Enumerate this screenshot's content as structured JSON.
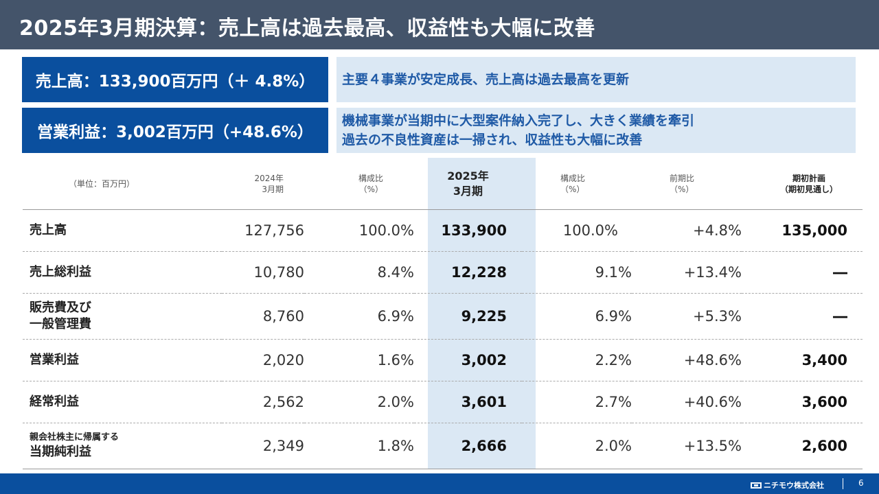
{
  "title": "2025年3月期決算：売上高は過去最高、収益性も大幅に改善",
  "highlights": [
    {
      "metric": "売上高：133,900百万円（＋ 4.8%）",
      "message": [
        "主要４事業が安定成長、売上高は過去最高を更新"
      ]
    },
    {
      "metric": "営業利益：3,002百万円（+48.6%）",
      "message": [
        "機械事業が当期中に大型案件納入完了し、大きく業績を牽引",
        "過去の不良性資産は一掃され、収益性も大幅に改善"
      ]
    }
  ],
  "table": {
    "unit_label": "（単位：百万円）",
    "headers": {
      "fy2024": [
        "2024年",
        "3月期"
      ],
      "ratio_2024": [
        "構成比",
        "（%）"
      ],
      "fy2025": [
        "2025年",
        "3月期"
      ],
      "ratio_2025": [
        "構成比",
        "（%）"
      ],
      "yoy": [
        "前期比",
        "（%）"
      ],
      "plan": [
        "期初計画",
        "（期初見通し）"
      ]
    },
    "rows": [
      {
        "label": [
          "売上高"
        ],
        "fy2024": "127,756",
        "ratio_2024": "100.0%",
        "fy2025": "133,900",
        "ratio_2025": "100.0%",
        "yoy": "+4.8%",
        "plan": "135,000"
      },
      {
        "label": [
          "売上総利益"
        ],
        "fy2024": "10,780",
        "ratio_2024": "8.4%",
        "fy2025": "12,228",
        "ratio_2025": "9.1%",
        "yoy": "+13.4%",
        "plan": "―"
      },
      {
        "label": [
          "販売費及び",
          "一般管理費"
        ],
        "fy2024": "8,760",
        "ratio_2024": "6.9%",
        "fy2025": "9,225",
        "ratio_2025": "6.9%",
        "yoy": "+5.3%",
        "plan": "―"
      },
      {
        "label": [
          "営業利益"
        ],
        "fy2024": "2,020",
        "ratio_2024": "1.6%",
        "fy2025": "3,002",
        "ratio_2025": "2.2%",
        "yoy": "+48.6%",
        "plan": "3,400"
      },
      {
        "label": [
          "経常利益"
        ],
        "fy2024": "2,562",
        "ratio_2024": "2.0%",
        "fy2025": "3,601",
        "ratio_2025": "2.7%",
        "yoy": "+40.6%",
        "plan": "3,600"
      },
      {
        "label": [
          "親会社株主に帰属する",
          "当期純利益"
        ],
        "fy2024": "2,349",
        "ratio_2024": "1.8%",
        "fy2025": "2,666",
        "ratio_2025": "2.0%",
        "yoy": "+13.5%",
        "plan": "2,600"
      }
    ]
  },
  "footer": {
    "company": "ニチモウ株式会社",
    "page": "6"
  },
  "colors": {
    "title_bar": "#44546a",
    "accent_blue": "#0a4f9e",
    "light_blue": "#dbe8f4",
    "message_text": "#1f5aa6"
  }
}
